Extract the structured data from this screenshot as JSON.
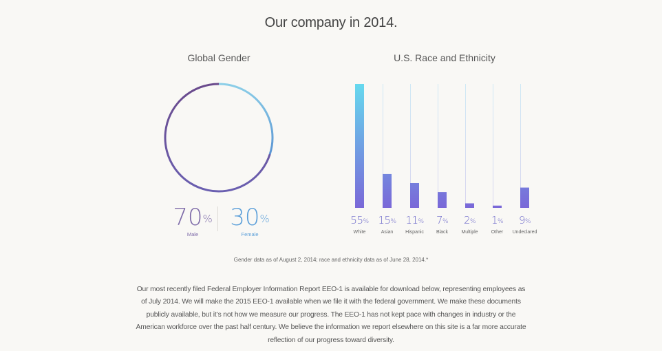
{
  "page": {
    "title": "Our company in 2014.",
    "footnote": "Gender data as of August 2, 2014; race and ethnicity data as of June 28, 2014.*",
    "body_text": "Our most recently filed Federal Employer Information Report EEO-1 is available for download below, representing employees as of July 2014. We will make the 2015 EEO-1 available when we file it with the federal government. We make these documents publicly available, but it’s not how we measure our progress. The EEO-1 has not kept pace with changes in industry or the American workforce over the past half century. We believe the information we report elsewhere on this site is a far more accurate reflection of our progress toward diversity."
  },
  "colors": {
    "background": "#f9f8f5",
    "male": "#7d6aa8",
    "male_ring_start": "#6a4a8c",
    "male_ring_end": "#6a5fb0",
    "female": "#5b9fd9",
    "female_ring_start": "#8ccfe8",
    "female_ring_end": "#5b95d3",
    "bar_top": "#66d9ee",
    "bar_bottom": "#7a68d8",
    "bar_label": "#6b67c9",
    "track": "#d7e6f2"
  },
  "chart_data": [
    {
      "type": "pie",
      "variant": "donut",
      "title": "Global Gender",
      "categories": [
        "Male",
        "Female"
      ],
      "values": [
        70,
        30
      ],
      "unit": "%",
      "labels": [
        {
          "name": "Male",
          "value": "70",
          "symbol": "%"
        },
        {
          "name": "Female",
          "value": "30",
          "symbol": "%"
        }
      ]
    },
    {
      "type": "bar",
      "title": "U.S. Race and Ethnicity",
      "categories": [
        "White",
        "Asian",
        "Hispanic",
        "Black",
        "Multiple",
        "Other",
        "Undeclared"
      ],
      "values": [
        55,
        15,
        11,
        7,
        2,
        1,
        9
      ],
      "unit": "%",
      "ylim": [
        0,
        55
      ],
      "xlabel": "",
      "ylabel": "",
      "grid": false,
      "symbol": "%"
    }
  ]
}
